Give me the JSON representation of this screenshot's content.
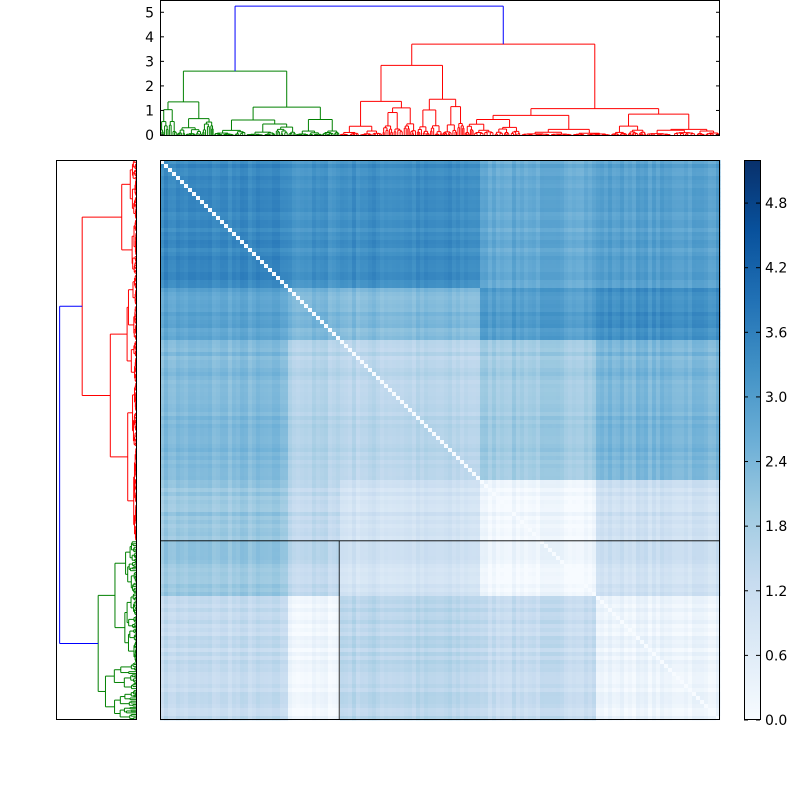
{
  "chart_data": [
    {
      "type": "dendrogram",
      "orientation": "top",
      "ylim": [
        0,
        5.5
      ],
      "yticks": [
        "0",
        "1",
        "2",
        "3",
        "4",
        "5"
      ],
      "root_height": 5.25,
      "clusters": [
        {
          "color": "#008000",
          "height": 2.6,
          "leaf_share": 0.32
        },
        {
          "color": "#ff0000",
          "height": 3.7,
          "leaf_share": 0.68
        }
      ],
      "link_colors": {
        "root": "#0000ff"
      },
      "grid": false
    },
    {
      "type": "dendrogram",
      "orientation": "left",
      "root_height": 5.25,
      "clusters": [
        {
          "color": "#ff0000",
          "height": 3.7,
          "leaf_share": 0.68
        },
        {
          "color": "#008000",
          "height": 2.6,
          "leaf_share": 0.32
        }
      ],
      "link_colors": {
        "root": "#0000ff"
      },
      "ticks_visible": false
    },
    {
      "type": "heatmap",
      "description_source": "pairwise distance matrix reordered by dendrogram",
      "colormap": "Blues",
      "vmin": 0.0,
      "vmax": 5.2,
      "block_bounds": [
        0,
        0.23,
        0.32,
        0.57,
        0.78,
        1.0
      ],
      "block_values": [
        [
          3.4,
          3.2,
          3.3,
          2.7,
          2.9
        ],
        [
          2.8,
          2.4,
          2.3,
          3.0,
          3.3
        ],
        [
          2.3,
          1.6,
          1.5,
          1.9,
          2.4
        ],
        [
          2.0,
          1.4,
          1.0,
          0.2,
          1.1
        ],
        [
          1.3,
          0.2,
          1.5,
          1.3,
          0.3
        ]
      ],
      "colorbar_ticks": [
        "0.0",
        "0.6",
        "1.2",
        "1.8",
        "2.4",
        "3.0",
        "3.6",
        "4.2",
        "4.8"
      ],
      "legend_placement": "right"
    }
  ]
}
